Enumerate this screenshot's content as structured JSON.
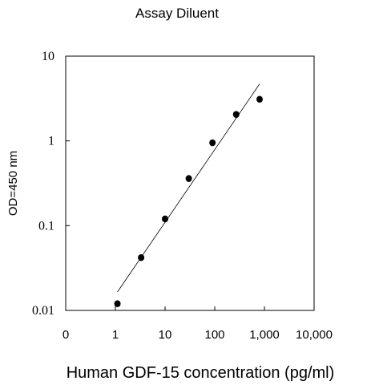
{
  "chart_data": {
    "type": "scatter",
    "title": "Assay Diluent",
    "xlabel": "Human GDF-15 concentration (pg/ml)",
    "ylabel": "OD=450 nm",
    "x_scale": "log",
    "y_scale": "log",
    "xlim": [
      0.1,
      10000
    ],
    "ylim": [
      0.01,
      10
    ],
    "x_tick_values": [
      0.1,
      1,
      10,
      100,
      1000,
      10000
    ],
    "x_tick_labels": [
      "0",
      "1",
      "10",
      "100",
      "1,000",
      "10,000"
    ],
    "y_tick_values": [
      0.01,
      0.1,
      1,
      10
    ],
    "y_tick_labels": [
      "0.01",
      "0.1",
      "1",
      "10"
    ],
    "grid": false,
    "series": [
      {
        "x": [
          1.1,
          3.3,
          10,
          30,
          90,
          270,
          800
        ],
        "y": [
          0.012,
          0.042,
          0.12,
          0.36,
          0.95,
          2.05,
          3.1
        ]
      }
    ],
    "fit_line": {
      "x": [
        1.1,
        800
      ],
      "y": [
        0.0165,
        4.7
      ]
    }
  }
}
